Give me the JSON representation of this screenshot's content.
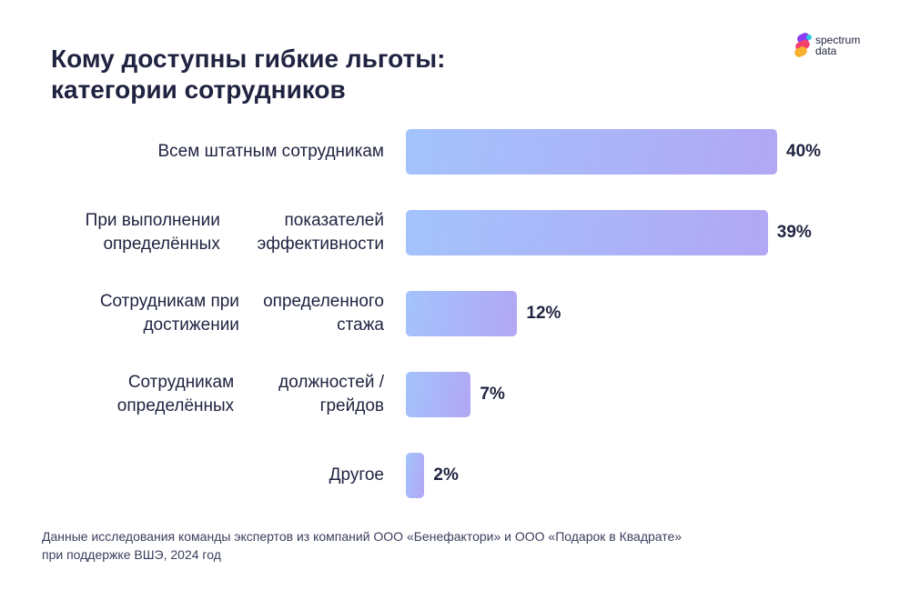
{
  "header": {
    "title_line1": "Кому доступны гибкие льготы:",
    "title_line2": "категории сотрудников"
  },
  "logo": {
    "line1": "spectrum",
    "line2": "data",
    "colors": [
      "#f2406b",
      "#f7b12d",
      "#8b3bf5",
      "#2ec9e0"
    ]
  },
  "chart_data": {
    "type": "bar",
    "orientation": "horizontal",
    "categories": [
      [
        "Всем штатным сотрудникам"
      ],
      [
        "При выполнении определённых",
        "показателей эффективности"
      ],
      [
        "Сотрудникам при достижении",
        "определенного стажа"
      ],
      [
        "Сотрудникам определённых",
        "должностей / грейдов"
      ],
      [
        "Другое"
      ]
    ],
    "values": [
      40,
      39,
      12,
      7,
      2
    ],
    "value_labels": [
      "40%",
      "39%",
      "12%",
      "7%",
      "2%"
    ],
    "unit": "%",
    "xlim": [
      0,
      40
    ],
    "grid": false,
    "bar_color_start": "#a3c3fc",
    "bar_color_end": "#b2a7f4"
  },
  "footer": {
    "source_line1": "Данные исследования команды экспертов из компаний ООО «Бенефактори» и ООО «Подарок в Квадрате»",
    "source_line2": "при поддержке ВШЭ, 2024 год"
  }
}
